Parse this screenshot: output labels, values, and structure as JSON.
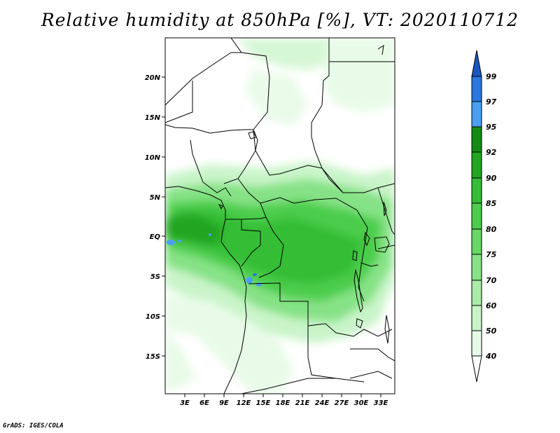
{
  "title": "Relative humidity at 850hPa [%], VT: 2020110712",
  "credit": "GrADS: IGES/COLA",
  "map": {
    "lat_labels": [
      "20N",
      "15N",
      "10N",
      "5N",
      "EQ",
      "5S",
      "10S",
      "15S"
    ],
    "lon_labels": [
      "3E",
      "6E",
      "9E",
      "12E",
      "15E",
      "18E",
      "21E",
      "24E",
      "27E",
      "30E",
      "33E"
    ]
  },
  "colorbar": {
    "levels": [
      "99",
      "97",
      "95",
      "92",
      "90",
      "85",
      "80",
      "75",
      "70",
      "60",
      "50",
      "40"
    ],
    "colors": {
      "c40_50": "#e8fbe8",
      "c50_60": "#c9f4c9",
      "c60_70": "#a8eca8",
      "c70_75": "#86e286",
      "c75_80": "#66d866",
      "c80_85": "#4ccd4c",
      "c85_90": "#35bd35",
      "c90_92": "#22a622",
      "c92_95": "#148c14",
      "c95_97": "#4aa0f0",
      "c97_99": "#2a78e0",
      "c99_up": "#1a56c0"
    }
  }
}
